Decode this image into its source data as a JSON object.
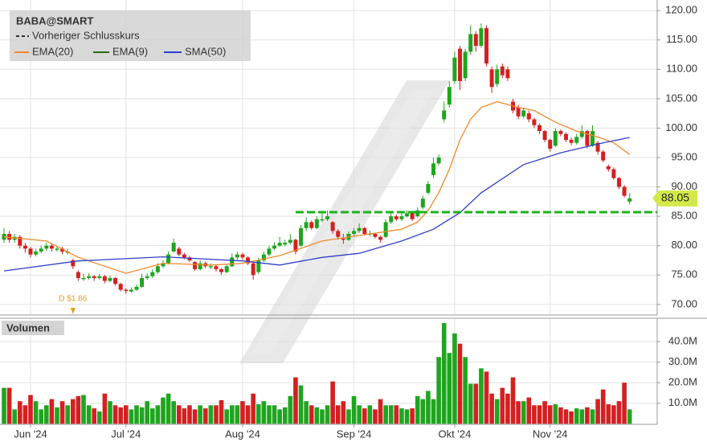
{
  "chart_data": [
    {
      "type": "candlestick",
      "title": "BABA@SMART",
      "up_color": "#1fa51f",
      "down_color": "#d42020",
      "xlim": [
        -0.76,
        123.2
      ],
      "ylim": [
        68.2,
        121.8
      ],
      "yticks": [
        {
          "value": 70,
          "label": "70.00"
        },
        {
          "value": 75,
          "label": "75.00"
        },
        {
          "value": 80,
          "label": "80.00"
        },
        {
          "value": 85,
          "label": "85.00"
        },
        {
          "value": 90,
          "label": "90.00"
        },
        {
          "value": 95,
          "label": "95.00"
        },
        {
          "value": 100,
          "label": "100.00"
        },
        {
          "value": 105,
          "label": "105.00"
        },
        {
          "value": 110,
          "label": "110.00"
        },
        {
          "value": 115,
          "label": "115.00"
        },
        {
          "value": 120,
          "label": "120.00"
        }
      ],
      "grid": true,
      "candles": [
        [
          81,
          83,
          80.5,
          82
        ],
        [
          82,
          82.5,
          80.5,
          81
        ],
        [
          81,
          82,
          80.5,
          81.5
        ],
        [
          81.5,
          81.8,
          79.5,
          80
        ],
        [
          80,
          80.5,
          78.8,
          79.5
        ],
        [
          79.5,
          79.8,
          78,
          78.5
        ],
        [
          78.5,
          79.5,
          78.2,
          79
        ],
        [
          79,
          80,
          78.7,
          79.5
        ],
        [
          79.5,
          80.5,
          79.2,
          80
        ],
        [
          80,
          80.3,
          79,
          79.5
        ],
        [
          79.3,
          80,
          79,
          79.5
        ],
        [
          79.5,
          79.8,
          78.5,
          79
        ],
        [
          78.8,
          79.5,
          78.5,
          79
        ],
        [
          77.5,
          77.8,
          76,
          76.5
        ],
        [
          75.5,
          75.8,
          74,
          74.5
        ],
        [
          74.3,
          75.2,
          74,
          74.5
        ],
        [
          74.5,
          75.3,
          74.2,
          74.8
        ],
        [
          74.8,
          75,
          74,
          74.5
        ],
        [
          74.5,
          75.2,
          74.2,
          74.8
        ],
        [
          74.8,
          75,
          73.6,
          74
        ],
        [
          74,
          74.9,
          73.8,
          74.5
        ],
        [
          74.5,
          74.6,
          73.2,
          73.5
        ],
        [
          73.5,
          73.7,
          72.2,
          72.5
        ],
        [
          72.5,
          72.8,
          71.8,
          72.3
        ],
        [
          72.2,
          72.9,
          72,
          72.5
        ],
        [
          72.5,
          73.4,
          72.3,
          73
        ],
        [
          73,
          75.2,
          72.8,
          74.5
        ],
        [
          74.5,
          75.3,
          74.2,
          74.8
        ],
        [
          74.8,
          76,
          74.5,
          75.5
        ],
        [
          75.5,
          77,
          75.2,
          76.5
        ],
        [
          76.5,
          77.5,
          76.2,
          77
        ],
        [
          77,
          79,
          76.8,
          78.5
        ],
        [
          79,
          81.2,
          78.8,
          80.5
        ],
        [
          79.5,
          79.8,
          78.2,
          78.5
        ],
        [
          78.5,
          78.8,
          77.7,
          78
        ],
        [
          78,
          78.3,
          77.2,
          77.5
        ],
        [
          77.2,
          77.4,
          75.7,
          76
        ],
        [
          76,
          77.5,
          75.8,
          77
        ],
        [
          77,
          77.3,
          76.2,
          76.5
        ],
        [
          76.3,
          77,
          76,
          76.5
        ],
        [
          76.5,
          76.8,
          75.6,
          76
        ],
        [
          76,
          76.2,
          75,
          75.5
        ],
        [
          75.5,
          76.9,
          75.3,
          76.5
        ],
        [
          76.5,
          78.7,
          76.3,
          78
        ],
        [
          78,
          79,
          77.6,
          78.5
        ],
        [
          78.5,
          78.8,
          77.6,
          78
        ],
        [
          78,
          78.2,
          76.7,
          77
        ],
        [
          77,
          77.2,
          74.2,
          75
        ],
        [
          75.5,
          78,
          75.2,
          77.5
        ],
        [
          77.5,
          79,
          77.2,
          78.5
        ],
        [
          78.5,
          80,
          78.2,
          79.5
        ],
        [
          79.5,
          80.6,
          79.2,
          80
        ],
        [
          80,
          81.5,
          79.8,
          80.5
        ],
        [
          80.2,
          81,
          79.9,
          80.5
        ],
        [
          80.5,
          82,
          80.2,
          81
        ],
        [
          81,
          81.2,
          78.5,
          79
        ],
        [
          80,
          83.5,
          79.8,
          83
        ],
        [
          83,
          84.8,
          82.5,
          84
        ],
        [
          84,
          84.3,
          82.7,
          83
        ],
        [
          83,
          85,
          82.8,
          84.5
        ],
        [
          84.3,
          85.5,
          84,
          84.5
        ],
        [
          84.5,
          86,
          84.2,
          85
        ],
        [
          84,
          84.2,
          82,
          82.5
        ],
        [
          82.5,
          82.8,
          81,
          81.5
        ],
        [
          81.2,
          82,
          80.3,
          81
        ],
        [
          81,
          82.4,
          80.8,
          82
        ],
        [
          82,
          83,
          81.7,
          82.5
        ],
        [
          82.5,
          83.8,
          82.2,
          83
        ],
        [
          83,
          83.2,
          81.7,
          82
        ],
        [
          82,
          82.6,
          81.6,
          82
        ],
        [
          82,
          82.2,
          81.2,
          81.5
        ],
        [
          81.5,
          81.7,
          80.5,
          81
        ],
        [
          81.5,
          84.5,
          81.3,
          84
        ],
        [
          84,
          85.6,
          83.7,
          85
        ],
        [
          85,
          85.3,
          84.2,
          84.5
        ],
        [
          84.5,
          85.5,
          84.2,
          85
        ],
        [
          85,
          86,
          84.8,
          85.5
        ],
        [
          85.5,
          85.7,
          84.2,
          84.5
        ],
        [
          85,
          86.5,
          84.8,
          86
        ],
        [
          86.5,
          88.5,
          86.2,
          88
        ],
        [
          89,
          91,
          88.7,
          90.5
        ],
        [
          92,
          95,
          91.5,
          94
        ],
        [
          94,
          95.5,
          93.7,
          95
        ],
        [
          101.5,
          104.5,
          101,
          103
        ],
        [
          104,
          108,
          103.5,
          107
        ],
        [
          108,
          113,
          107.5,
          112
        ],
        [
          113.5,
          114,
          106.5,
          108
        ],
        [
          108.5,
          113.5,
          108,
          113
        ],
        [
          113,
          117.5,
          112.5,
          116
        ],
        [
          116,
          116.5,
          113,
          114
        ],
        [
          114,
          117.8,
          113.7,
          117
        ],
        [
          117,
          117.5,
          110.5,
          111
        ],
        [
          110,
          110.5,
          106,
          107
        ],
        [
          107.5,
          110.8,
          107,
          110
        ],
        [
          110.5,
          111,
          108.5,
          109
        ],
        [
          110,
          110.5,
          108,
          108.5
        ],
        [
          104.5,
          105,
          102.5,
          103
        ],
        [
          103.5,
          104,
          101.5,
          102
        ],
        [
          102,
          103.5,
          101.7,
          103
        ],
        [
          102.5,
          103,
          101,
          101.5
        ],
        [
          101.5,
          101.8,
          100,
          100.5
        ],
        [
          100.5,
          100.8,
          99,
          99.5
        ],
        [
          99.5,
          99.7,
          97.6,
          98
        ],
        [
          98,
          98.2,
          96,
          96.5
        ],
        [
          97,
          100,
          96.8,
          99.5
        ],
        [
          99.5,
          99.8,
          98.6,
          99
        ],
        [
          99,
          99.3,
          97.6,
          98
        ],
        [
          98,
          98.4,
          97.1,
          97.5
        ],
        [
          97.5,
          99,
          97.2,
          98.5
        ],
        [
          98.5,
          100.5,
          98.2,
          99.5
        ],
        [
          99.5,
          99.7,
          96.6,
          97
        ],
        [
          97,
          100.5,
          96.8,
          99.5
        ],
        [
          97.5,
          97.8,
          95.5,
          96
        ],
        [
          96,
          96.3,
          94.2,
          94.5
        ],
        [
          93.5,
          93.8,
          92.6,
          93
        ],
        [
          93,
          93.3,
          91.2,
          91.5
        ],
        [
          91.5,
          91.7,
          89.6,
          90
        ],
        [
          90,
          90.3,
          88.2,
          88.5
        ],
        [
          87.5,
          88.9,
          87,
          88.05
        ]
      ],
      "series": [
        {
          "name": "Vorheriger Schlusskurs",
          "color": "#333333",
          "style": "dashed"
        },
        {
          "name": "EMA(20)",
          "color": "#f08a2a",
          "x": [
            0,
            8,
            14,
            23,
            30,
            39,
            45,
            52,
            60,
            69,
            75,
            78,
            80,
            82,
            84,
            86,
            88,
            90,
            93,
            97,
            100,
            104,
            108,
            112,
            115,
            118
          ],
          "values": [
            81.5,
            80.8,
            78,
            75.3,
            77,
            76.7,
            77,
            78.3,
            80.8,
            82,
            82.8,
            84,
            86,
            89,
            93,
            98,
            101.5,
            103.5,
            104.5,
            103.5,
            103,
            101,
            99.5,
            98.5,
            97.5,
            95.5
          ]
        },
        {
          "name": "EMA(9)",
          "color": "#2e6b12"
        },
        {
          "name": "SMA(50)",
          "color": "#2f3fc8",
          "x": [
            0,
            14,
            30,
            45,
            52,
            60,
            67,
            75,
            81,
            86,
            90,
            98,
            105,
            113,
            118
          ],
          "values": [
            75.7,
            77.4,
            78.1,
            77.4,
            76.7,
            78,
            78.7,
            80.8,
            82.8,
            85.6,
            89,
            93.8,
            95.8,
            97.5,
            98.4
          ]
        }
      ],
      "hline": {
        "value": 85.7,
        "color": "#1db31d",
        "x": [
          55,
          123.2
        ]
      },
      "last_price": 88.05,
      "annotation": {
        "x": 13,
        "label": "D $1.86"
      }
    },
    {
      "type": "bar",
      "title": "Volumen",
      "xlim": [
        -0.76,
        123.2
      ],
      "ylim": [
        0,
        51.4
      ],
      "yticks": [
        {
          "value": 10,
          "label": "10.0M"
        },
        {
          "value": 20,
          "label": "20.0M"
        },
        {
          "value": 30,
          "label": "30.0M"
        },
        {
          "value": 40,
          "label": "40.0M"
        }
      ],
      "xticks": [
        {
          "value": 5,
          "label": "Jun '24"
        },
        {
          "value": 23,
          "label": "Jul '24"
        },
        {
          "value": 45,
          "label": "Aug '24"
        },
        {
          "value": 66,
          "label": "Sep '24"
        },
        {
          "value": 85,
          "label": "Okt '24"
        },
        {
          "value": 103,
          "label": "Nov '24"
        }
      ],
      "values": [
        17.5,
        17.5,
        7,
        11,
        9,
        14,
        11,
        7,
        9,
        12,
        8,
        11,
        9,
        12,
        13.5,
        14,
        9,
        7.5,
        6,
        14.7,
        11,
        9,
        8,
        9,
        7,
        9,
        8,
        11,
        7.5,
        9,
        12.8,
        14.7,
        11,
        9,
        7.5,
        9,
        7,
        9,
        7.5,
        9,
        9,
        11.5,
        7,
        9,
        9,
        11,
        9,
        14.7,
        9.5,
        11,
        9,
        9,
        7,
        8,
        13.5,
        22.6,
        18.7,
        11,
        9,
        8,
        7,
        9,
        20.6,
        9,
        11,
        7,
        13.5,
        9,
        7.5,
        9,
        7,
        12,
        9,
        9,
        9,
        7.5,
        7,
        7.5,
        13.5,
        12,
        16,
        12,
        32.5,
        49,
        34.5,
        44,
        39,
        32.5,
        19.5,
        19.5,
        27,
        25.4,
        14.7,
        12,
        17.5,
        14.7,
        22.6,
        11,
        11,
        12.8,
        9,
        9,
        11,
        9,
        9.5,
        8,
        7,
        6,
        7.5,
        7,
        8,
        7,
        12,
        16.7,
        9.5,
        9,
        11,
        20,
        7
      ]
    }
  ]
}
